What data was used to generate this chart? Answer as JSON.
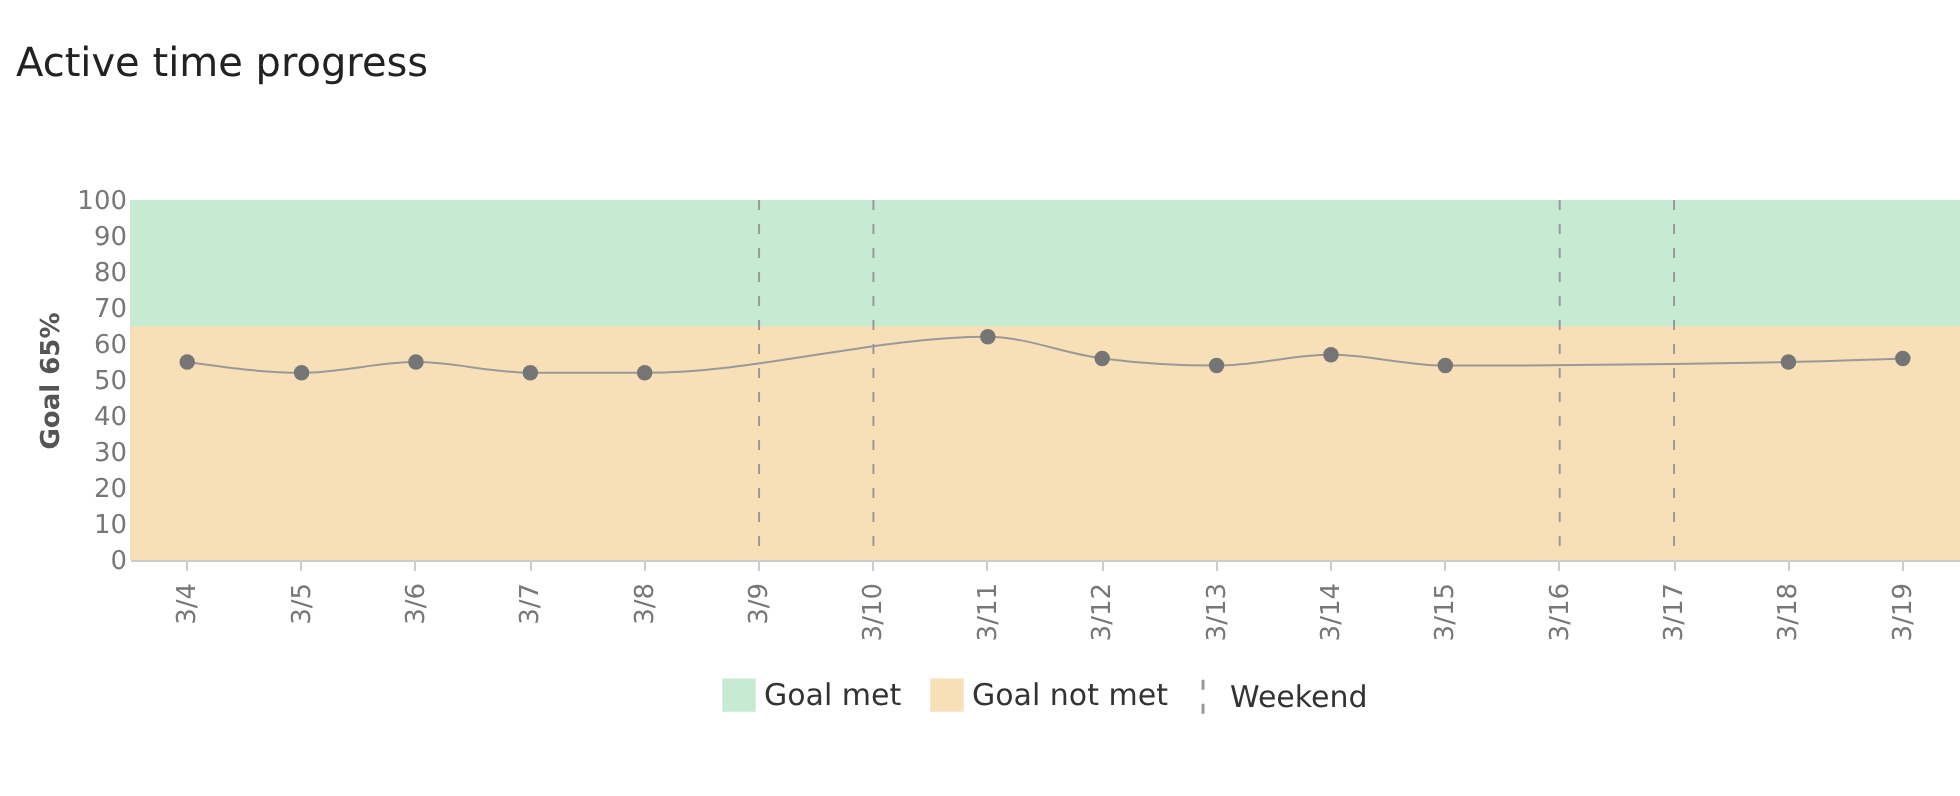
{
  "chart_data": {
    "type": "line",
    "title": "Active time progress",
    "ylabel": "Goal 65%",
    "categories": [
      "3/4",
      "3/5",
      "3/6",
      "3/7",
      "3/8",
      "3/9",
      "3/10",
      "3/11",
      "3/12",
      "3/13",
      "3/14",
      "3/15",
      "3/16",
      "3/17",
      "3/18",
      "3/19"
    ],
    "series": [
      {
        "color": "#757575",
        "values": [
          55,
          52,
          55,
          52,
          52,
          null,
          null,
          62,
          56,
          54,
          57,
          54,
          null,
          null,
          55,
          56
        ]
      }
    ],
    "ylim": [
      0,
      100
    ],
    "yticks": [
      0,
      10,
      20,
      30,
      40,
      50,
      60,
      70,
      80,
      90,
      100
    ],
    "bands": [
      {
        "axis": "y",
        "from": 65,
        "to": 100,
        "label": "Goal met",
        "color": "#c7ead3"
      },
      {
        "axis": "y",
        "from": 0,
        "to": 65,
        "label": "Goal not met",
        "color": "#f7e0b8"
      }
    ],
    "ref_lines": [
      {
        "axis": "x",
        "value": "3/9",
        "label": "Weekend",
        "color": "#999999",
        "line_style": "dashed"
      },
      {
        "axis": "x",
        "value": "3/10",
        "color": "#999999",
        "line_style": "dashed"
      },
      {
        "axis": "x",
        "value": "3/16",
        "color": "#999999",
        "line_style": "dashed"
      },
      {
        "axis": "x",
        "value": "3/17",
        "color": "#999999",
        "line_style": "dashed"
      }
    ],
    "marker": "circle",
    "line_style": "solid",
    "legend": "bottom"
  }
}
